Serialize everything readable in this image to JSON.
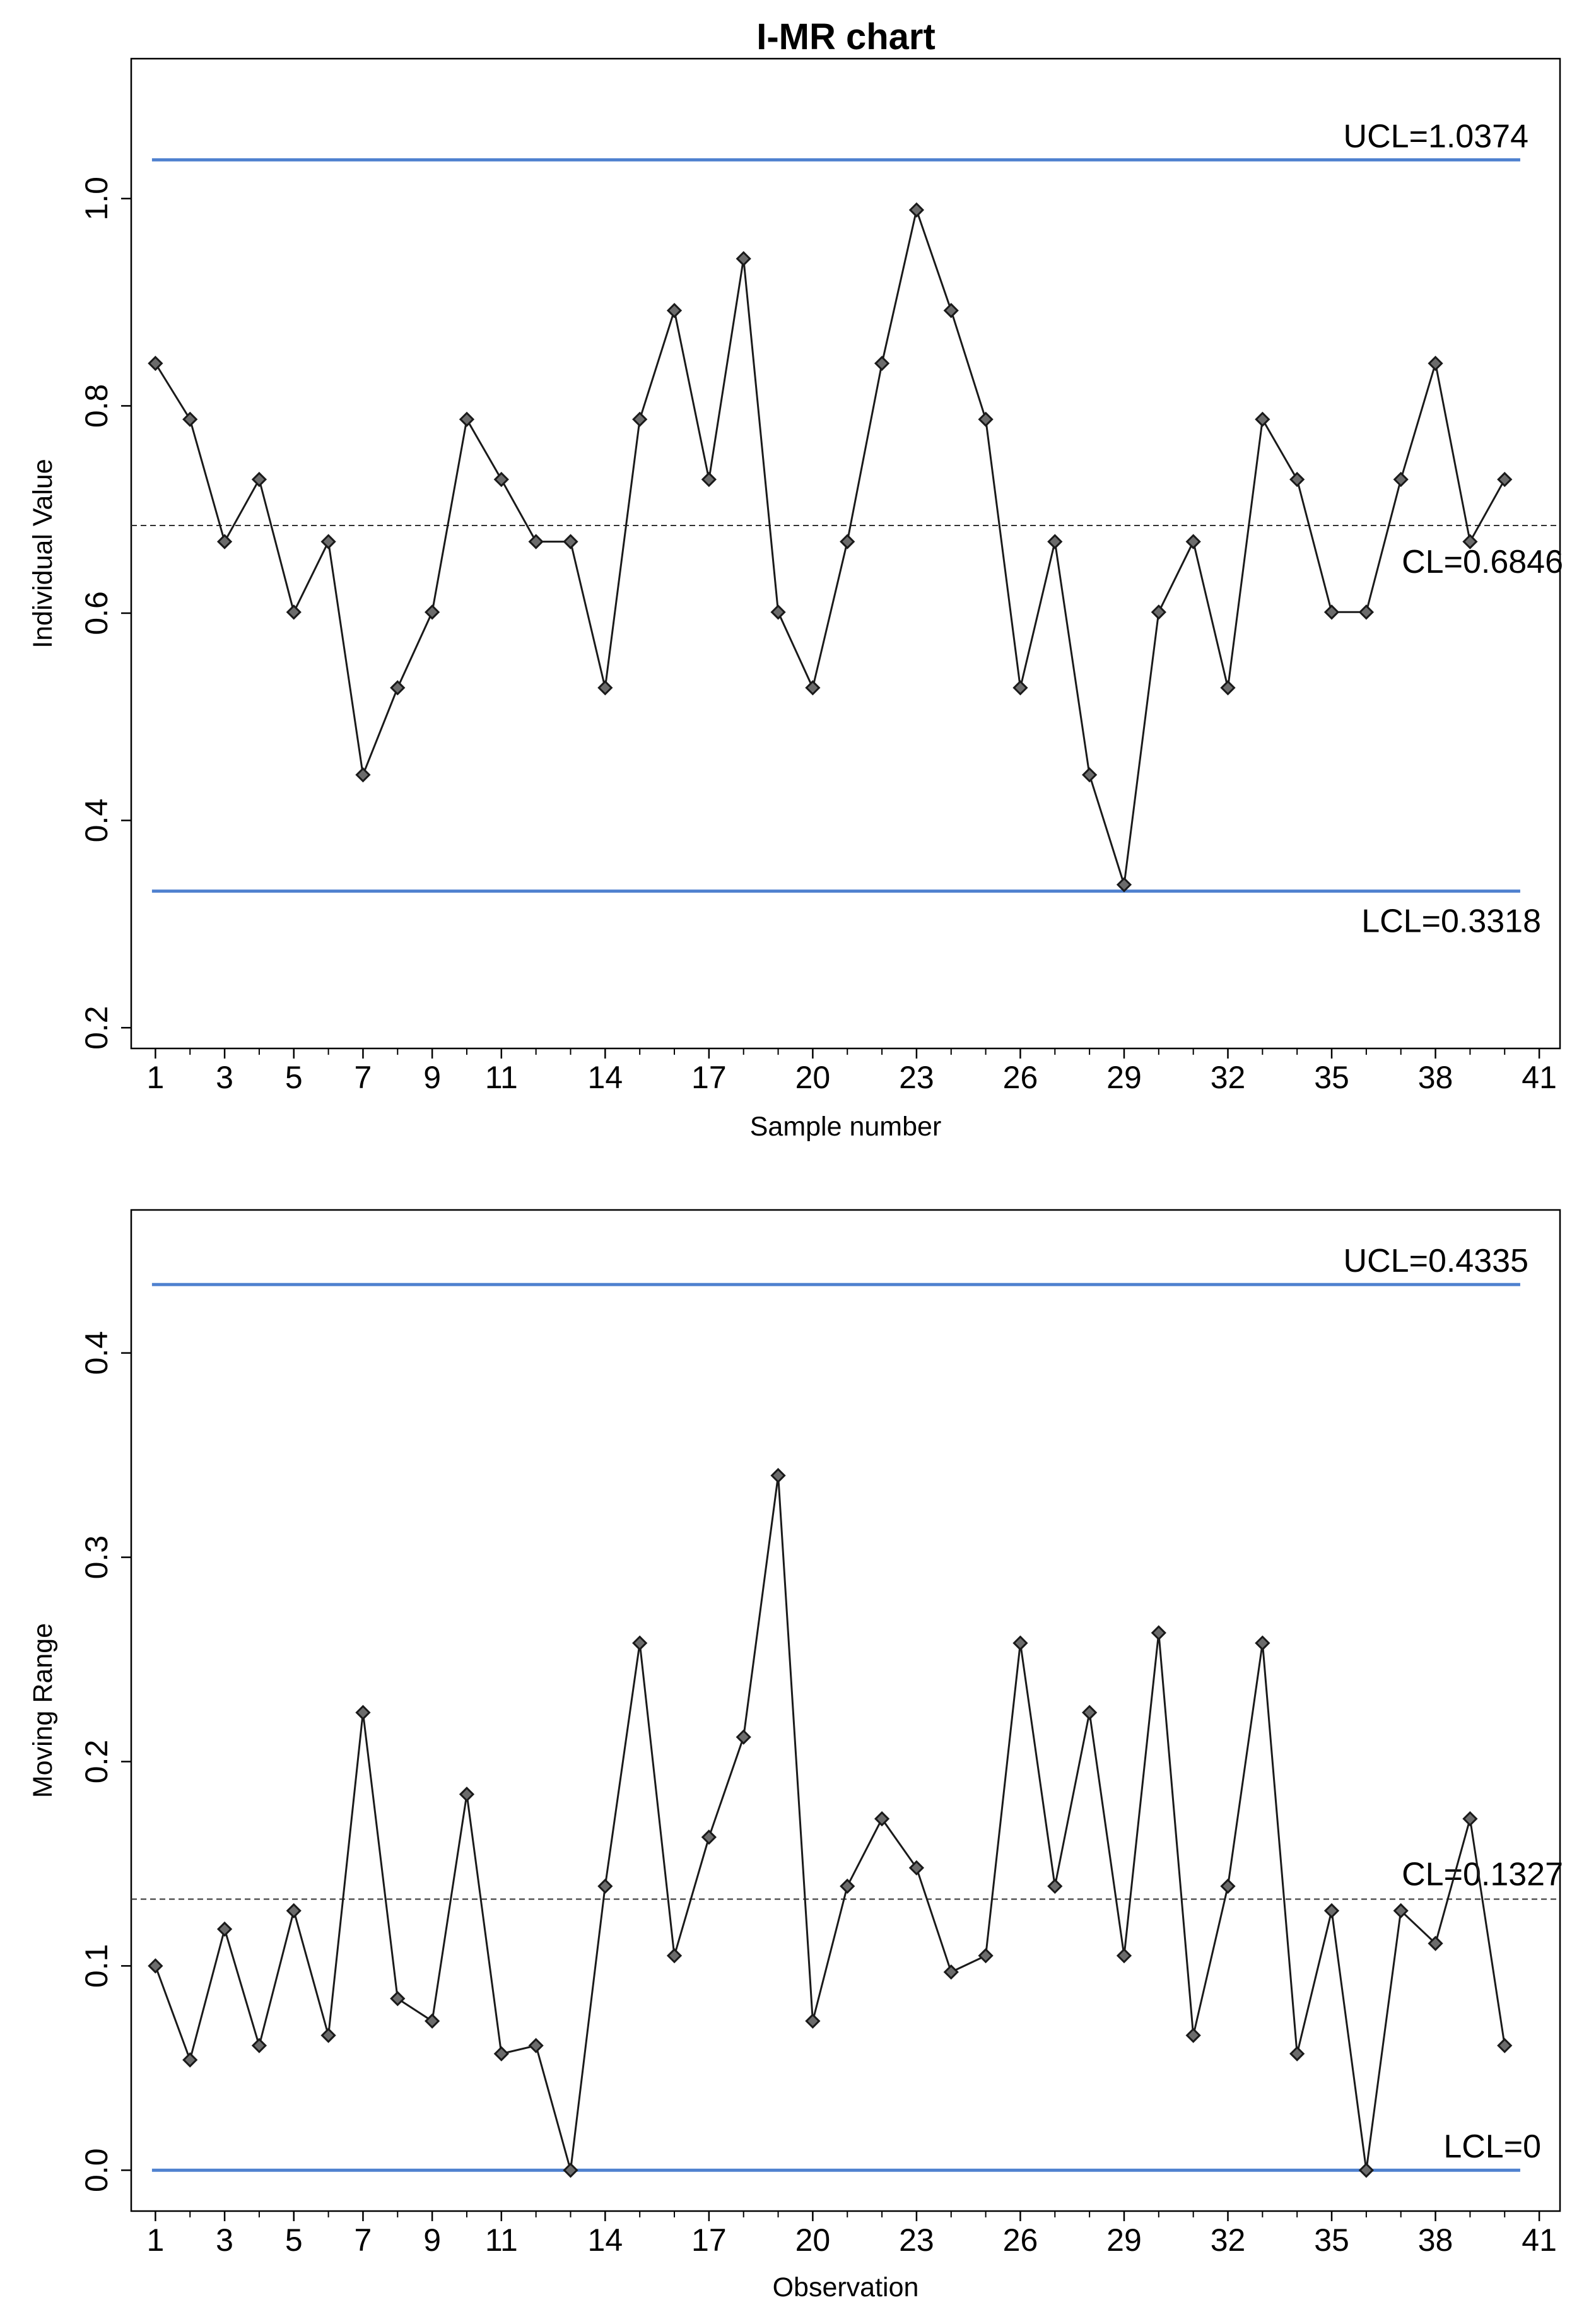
{
  "title": "I-MR chart",
  "colors": {
    "control_limit": "#4f81cf",
    "series": "#1a1a1a",
    "center_line": "#333333",
    "frame": "#000000",
    "background": "#ffffff"
  },
  "chart_data": [
    {
      "type": "line",
      "id": "individuals",
      "title": "I-MR chart",
      "xlabel": "Sample number",
      "ylabel": "Individual Value",
      "xlim": [
        0.3,
        41.6
      ],
      "ylim": [
        0.18,
        1.135
      ],
      "x_ticks": [
        1,
        3,
        5,
        7,
        9,
        11,
        14,
        17,
        20,
        23,
        26,
        29,
        32,
        35,
        38,
        41
      ],
      "y_ticks": [
        0.2,
        0.4,
        0.6,
        0.8,
        1.0
      ],
      "y_tick_labels": [
        "0.2",
        "0.4",
        "0.6",
        "0.8",
        "1.0"
      ],
      "series": [
        {
          "name": "Individual Value",
          "x": [
            1,
            2,
            3,
            4,
            5,
            6,
            7,
            8,
            9,
            10,
            11,
            12,
            13,
            14,
            15,
            16,
            17,
            18,
            19,
            20,
            21,
            22,
            23,
            24,
            25,
            26,
            27,
            28,
            29,
            30,
            31,
            32,
            33,
            34,
            35,
            36,
            37,
            38,
            39,
            40
          ],
          "values": [
            0.841,
            0.787,
            0.669,
            0.729,
            0.601,
            0.669,
            0.444,
            0.528,
            0.601,
            0.787,
            0.729,
            0.669,
            0.669,
            0.528,
            0.787,
            0.892,
            0.729,
            0.942,
            0.601,
            0.528,
            0.669,
            0.841,
            0.989,
            0.892,
            0.787,
            0.528,
            0.669,
            0.444,
            0.338,
            0.601,
            0.669,
            0.528,
            0.787,
            0.729,
            0.601,
            0.601,
            0.729,
            0.841,
            0.669,
            0.729
          ]
        }
      ],
      "control_limits": {
        "ucl": {
          "value": 1.0374,
          "label": "UCL=1.0374"
        },
        "cl": {
          "value": 0.6846,
          "label": "CL=0.6846"
        },
        "lcl": {
          "value": 0.3318,
          "label": "LCL=0.3318"
        }
      }
    },
    {
      "type": "line",
      "id": "moving-range",
      "title": "",
      "xlabel": "Observation",
      "ylabel": "Moving Range",
      "xlim": [
        0.3,
        41.6
      ],
      "ylim": [
        -0.02,
        0.47
      ],
      "x_ticks": [
        1,
        3,
        5,
        7,
        9,
        11,
        14,
        17,
        20,
        23,
        26,
        29,
        32,
        35,
        38,
        41
      ],
      "y_ticks": [
        0.0,
        0.1,
        0.2,
        0.3,
        0.4
      ],
      "y_tick_labels": [
        "0.0",
        "0.1",
        "0.2",
        "0.3",
        "0.4"
      ],
      "series": [
        {
          "name": "Moving Range",
          "x": [
            1,
            2,
            3,
            4,
            5,
            6,
            7,
            8,
            9,
            10,
            11,
            12,
            13,
            14,
            15,
            16,
            17,
            18,
            19,
            20,
            21,
            22,
            23,
            24,
            25,
            26,
            27,
            28,
            29,
            30,
            31,
            32,
            33,
            34,
            35,
            36,
            37,
            38,
            39,
            40
          ],
          "values": [
            0.1,
            0.054,
            0.118,
            0.061,
            0.127,
            0.066,
            0.224,
            0.084,
            0.073,
            0.184,
            0.057,
            0.061,
            0.0,
            0.139,
            0.258,
            0.105,
            0.163,
            0.212,
            0.34,
            0.073,
            0.139,
            0.172,
            0.148,
            0.097,
            0.105,
            0.258,
            0.139,
            0.224,
            0.105,
            0.263,
            0.066,
            0.139,
            0.258,
            0.057,
            0.127,
            0.0,
            0.127,
            0.111,
            0.172,
            0.061
          ]
        }
      ],
      "control_limits": {
        "ucl": {
          "value": 0.4335,
          "label": "UCL=0.4335"
        },
        "cl": {
          "value": 0.1327,
          "label": "CL=0.1327"
        },
        "lcl": {
          "value": 0.0,
          "label": "LCL=0"
        }
      }
    }
  ]
}
